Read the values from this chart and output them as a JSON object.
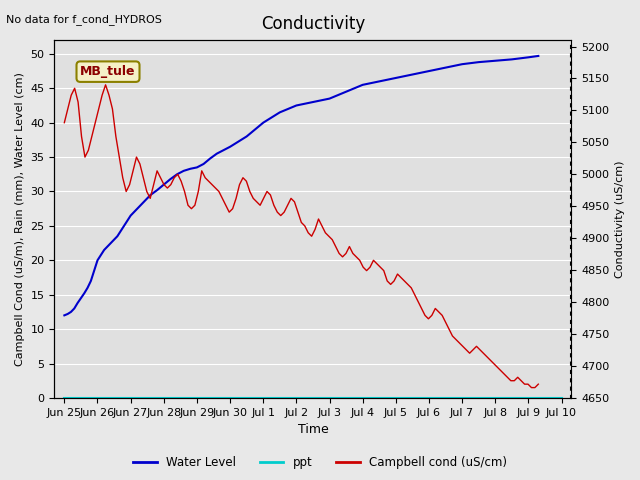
{
  "title": "Conductivity",
  "top_left_text": "No data for f_cond_HYDROS",
  "ylabel_left": "Campbell Cond (uS/m), Rain (mm), Water Level (cm)",
  "ylabel_right": "Conductivity (uS/cm)",
  "xlabel": "Time",
  "annotation_box": "MB_tule",
  "ylim_left": [
    0,
    52
  ],
  "ylim_right": [
    4650,
    5210
  ],
  "bg_color": "#e8e8e8",
  "plot_bg_color": "#e0e0e0",
  "grid_color": "#ffffff",
  "water_level_color": "#0000cc",
  "ppt_color": "#00cccc",
  "campbell_color": "#cc0000",
  "x_tick_labels": [
    "Jun 25",
    "Jun 26",
    "Jun 27",
    "Jun 28",
    "Jun 29",
    "Jun 30",
    "Jul 1",
    "Jul 2",
    "Jul 3",
    "Jul 4",
    "Jul 5",
    "Jul 6",
    "Jul 7",
    "Jul 8",
    "Jul 9",
    "Jul 10"
  ],
  "x_tick_positions": [
    0,
    1,
    2,
    3,
    4,
    5,
    6,
    7,
    8,
    9,
    10,
    11,
    12,
    13,
    14,
    15
  ],
  "xlim": [
    -0.3,
    15.3
  ],
  "water_level_x": [
    0,
    0.1,
    0.2,
    0.3,
    0.4,
    0.5,
    0.6,
    0.7,
    0.8,
    0.9,
    1.0,
    1.2,
    1.4,
    1.6,
    1.8,
    2.0,
    2.2,
    2.4,
    2.6,
    2.8,
    3.0,
    3.2,
    3.4,
    3.6,
    3.8,
    4.0,
    4.2,
    4.4,
    4.6,
    4.8,
    5.0,
    5.5,
    6.0,
    6.5,
    7.0,
    7.5,
    8.0,
    8.5,
    9.0,
    9.5,
    10.0,
    10.5,
    11.0,
    11.5,
    12.0,
    12.5,
    13.0,
    13.5,
    14.0,
    14.3
  ],
  "water_level_y": [
    12,
    12.2,
    12.5,
    13.0,
    13.8,
    14.5,
    15.2,
    16.0,
    17.0,
    18.5,
    20.0,
    21.5,
    22.5,
    23.5,
    25.0,
    26.5,
    27.5,
    28.5,
    29.5,
    30.2,
    31.0,
    31.8,
    32.5,
    33.0,
    33.3,
    33.5,
    34.0,
    34.8,
    35.5,
    36.0,
    36.5,
    38.0,
    40.0,
    41.5,
    42.5,
    43.0,
    43.5,
    44.5,
    45.5,
    46.0,
    46.5,
    47.0,
    47.5,
    48.0,
    48.5,
    48.8,
    49.0,
    49.2,
    49.5,
    49.7
  ],
  "campbell_y": [
    40,
    42,
    44,
    45,
    43,
    38,
    35,
    36,
    38,
    40,
    42,
    44,
    45.5,
    44,
    42,
    38,
    35,
    32,
    30,
    31,
    33,
    35,
    34,
    32,
    30,
    29,
    31,
    33,
    32,
    31,
    30.5,
    31,
    32,
    32.5,
    31.5,
    30,
    28,
    27.5,
    28,
    30,
    33,
    32,
    31.5,
    31,
    30.5,
    30,
    29,
    28,
    27,
    27.5,
    29,
    31,
    32,
    31.5,
    30,
    29,
    28.5,
    28,
    29,
    30,
    29.5,
    28,
    27,
    26.5,
    27,
    28,
    29,
    28.5,
    27,
    25.5,
    25,
    24,
    23.5,
    24.5,
    26,
    25,
    24,
    23.5,
    23,
    22,
    21,
    20.5,
    21,
    22,
    21,
    20.5,
    20,
    19,
    18.5,
    19,
    20,
    19.5,
    19,
    18.5,
    17,
    16.5,
    17,
    18,
    17.5,
    17,
    16.5,
    16,
    15,
    14,
    13,
    12,
    11.5,
    12,
    13,
    12.5,
    12,
    11,
    10,
    9,
    8.5,
    8,
    7.5,
    7,
    6.5,
    7,
    7.5,
    7,
    6.5,
    6,
    5.5,
    5,
    4.5,
    4,
    3.5,
    3,
    2.5,
    2.5,
    3,
    2.5,
    2,
    2,
    1.5,
    1.5,
    2
  ],
  "ppt_y_const": 0,
  "right_axis_ticks": [
    4650,
    4700,
    4750,
    4800,
    4850,
    4900,
    4950,
    5000,
    5050,
    5100,
    5150,
    5200
  ],
  "left_axis_ticks": [
    0,
    5,
    10,
    15,
    20,
    25,
    30,
    35,
    40,
    45,
    50
  ]
}
